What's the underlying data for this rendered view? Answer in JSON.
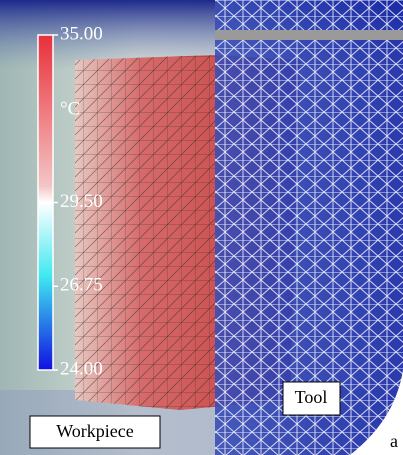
{
  "colorbar": {
    "unit": "°C",
    "lim": [
      24,
      35
    ],
    "ticks": [
      {
        "value": 35,
        "label": "35.00"
      },
      {
        "value": 29.5,
        "label": "29.50"
      },
      {
        "value": 26.75,
        "label": "26.75"
      },
      {
        "value": 24,
        "label": "24.00"
      }
    ]
  },
  "labels": {
    "workpiece": "Workpiece",
    "tool": "Tool",
    "panel": "a"
  }
}
